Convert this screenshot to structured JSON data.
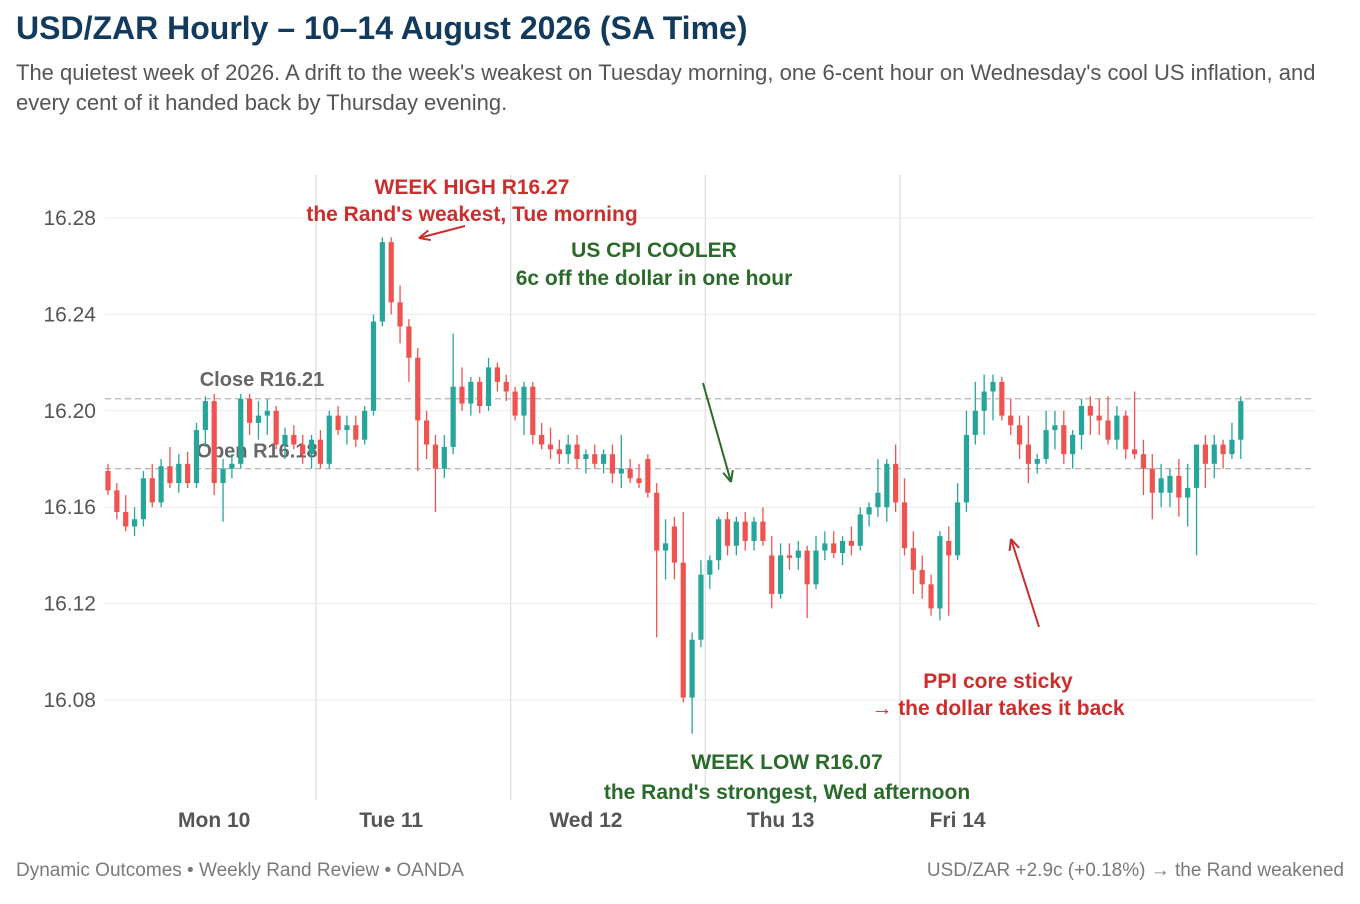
{
  "title": "USD/ZAR Hourly – 10–14 August 2026 (SA Time)",
  "subtitle": "The quietest week of 2026. A drift to the week's weakest on Tuesday morning, one 6-cent hour on Wednesday's cool US inflation, and every cent of it handed back by Thursday evening.",
  "footer": {
    "source": "Dynamic Outcomes • Weekly Rand Review • OANDA",
    "summary": "USD/ZAR +2.9c (+0.18%) → the Rand weakened"
  },
  "colors": {
    "up": "#26a69a",
    "down": "#ef5350",
    "annotation_red": "#cc2e2e",
    "annotation_green": "#2a6a2a",
    "title": "#123a5c"
  },
  "chart_data": {
    "type": "candlestick",
    "title": "USD/ZAR Hourly – 10–14 August 2026 (SA Time)",
    "ylim": [
      16.05,
      16.3
    ],
    "yticks": [
      "16.28",
      "16.24",
      "16.20",
      "16.16",
      "16.12",
      "16.08"
    ],
    "ytick_values": [
      16.28,
      16.24,
      16.2,
      16.16,
      16.12,
      16.08
    ],
    "grid": true,
    "days": [
      {
        "label": "Mon 10",
        "center_hour": 12
      },
      {
        "label": "Tue 11",
        "center_hour": 32
      },
      {
        "label": "Wed 12",
        "center_hour": 54
      },
      {
        "label": "Thu 13",
        "center_hour": 76
      },
      {
        "label": "Fri 14",
        "center_hour": 96
      }
    ],
    "day_boundaries": [
      24,
      46,
      68,
      90
    ],
    "reference_lines": [
      {
        "label": "Close R16.21",
        "value": 16.205
      },
      {
        "label": "Open R16.18",
        "value": 16.176
      }
    ],
    "candles": [
      {
        "o": 16.175,
        "h": 16.178,
        "l": 16.165,
        "c": 16.167
      },
      {
        "o": 16.167,
        "h": 16.17,
        "l": 16.155,
        "c": 16.158
      },
      {
        "o": 16.158,
        "h": 16.165,
        "l": 16.15,
        "c": 16.152
      },
      {
        "o": 16.152,
        "h": 16.16,
        "l": 16.148,
        "c": 16.155
      },
      {
        "o": 16.155,
        "h": 16.175,
        "l": 16.152,
        "c": 16.172
      },
      {
        "o": 16.172,
        "h": 16.178,
        "l": 16.16,
        "c": 16.162
      },
      {
        "o": 16.162,
        "h": 16.18,
        "l": 16.16,
        "c": 16.177
      },
      {
        "o": 16.177,
        "h": 16.185,
        "l": 16.168,
        "c": 16.17
      },
      {
        "o": 16.17,
        "h": 16.182,
        "l": 16.166,
        "c": 16.178
      },
      {
        "o": 16.178,
        "h": 16.183,
        "l": 16.168,
        "c": 16.17
      },
      {
        "o": 16.17,
        "h": 16.195,
        "l": 16.168,
        "c": 16.192
      },
      {
        "o": 16.192,
        "h": 16.206,
        "l": 16.185,
        "c": 16.204
      },
      {
        "o": 16.204,
        "h": 16.207,
        "l": 16.165,
        "c": 16.17
      },
      {
        "o": 16.17,
        "h": 16.18,
        "l": 16.154,
        "c": 16.176
      },
      {
        "o": 16.176,
        "h": 16.182,
        "l": 16.172,
        "c": 16.178
      },
      {
        "o": 16.178,
        "h": 16.207,
        "l": 16.176,
        "c": 16.205
      },
      {
        "o": 16.205,
        "h": 16.207,
        "l": 16.19,
        "c": 16.195
      },
      {
        "o": 16.195,
        "h": 16.204,
        "l": 16.188,
        "c": 16.198
      },
      {
        "o": 16.198,
        "h": 16.205,
        "l": 16.19,
        "c": 16.2
      },
      {
        "o": 16.2,
        "h": 16.202,
        "l": 16.184,
        "c": 16.186
      },
      {
        "o": 16.186,
        "h": 16.193,
        "l": 16.18,
        "c": 16.19
      },
      {
        "o": 16.19,
        "h": 16.194,
        "l": 16.184,
        "c": 16.186
      },
      {
        "o": 16.186,
        "h": 16.19,
        "l": 16.178,
        "c": 16.182
      },
      {
        "o": 16.182,
        "h": 16.19,
        "l": 16.176,
        "c": 16.188
      },
      {
        "o": 16.188,
        "h": 16.192,
        "l": 16.176,
        "c": 16.178
      },
      {
        "o": 16.178,
        "h": 16.2,
        "l": 16.176,
        "c": 16.198
      },
      {
        "o": 16.198,
        "h": 16.202,
        "l": 16.19,
        "c": 16.192
      },
      {
        "o": 16.192,
        "h": 16.198,
        "l": 16.186,
        "c": 16.194
      },
      {
        "o": 16.194,
        "h": 16.198,
        "l": 16.185,
        "c": 16.188
      },
      {
        "o": 16.188,
        "h": 16.202,
        "l": 16.186,
        "c": 16.2
      },
      {
        "o": 16.2,
        "h": 16.24,
        "l": 16.198,
        "c": 16.237
      },
      {
        "o": 16.237,
        "h": 16.272,
        "l": 16.235,
        "c": 16.27
      },
      {
        "o": 16.27,
        "h": 16.272,
        "l": 16.24,
        "c": 16.245
      },
      {
        "o": 16.245,
        "h": 16.252,
        "l": 16.228,
        "c": 16.235
      },
      {
        "o": 16.235,
        "h": 16.238,
        "l": 16.212,
        "c": 16.222
      },
      {
        "o": 16.222,
        "h": 16.226,
        "l": 16.175,
        "c": 16.196
      },
      {
        "o": 16.196,
        "h": 16.2,
        "l": 16.18,
        "c": 16.186
      },
      {
        "o": 16.186,
        "h": 16.19,
        "l": 16.158,
        "c": 16.176
      },
      {
        "o": 16.176,
        "h": 16.19,
        "l": 16.172,
        "c": 16.185
      },
      {
        "o": 16.185,
        "h": 16.232,
        "l": 16.182,
        "c": 16.21
      },
      {
        "o": 16.21,
        "h": 16.218,
        "l": 16.2,
        "c": 16.203
      },
      {
        "o": 16.203,
        "h": 16.214,
        "l": 16.198,
        "c": 16.212
      },
      {
        "o": 16.212,
        "h": 16.214,
        "l": 16.199,
        "c": 16.202
      },
      {
        "o": 16.202,
        "h": 16.222,
        "l": 16.2,
        "c": 16.218
      },
      {
        "o": 16.218,
        "h": 16.22,
        "l": 16.208,
        "c": 16.212
      },
      {
        "o": 16.212,
        "h": 16.215,
        "l": 16.204,
        "c": 16.208
      },
      {
        "o": 16.208,
        "h": 16.21,
        "l": 16.196,
        "c": 16.198
      },
      {
        "o": 16.198,
        "h": 16.212,
        "l": 16.19,
        "c": 16.21
      },
      {
        "o": 16.21,
        "h": 16.212,
        "l": 16.186,
        "c": 16.19
      },
      {
        "o": 16.19,
        "h": 16.195,
        "l": 16.184,
        "c": 16.186
      },
      {
        "o": 16.186,
        "h": 16.193,
        "l": 16.18,
        "c": 16.184
      },
      {
        "o": 16.184,
        "h": 16.188,
        "l": 16.178,
        "c": 16.182
      },
      {
        "o": 16.182,
        "h": 16.19,
        "l": 16.178,
        "c": 16.186
      },
      {
        "o": 16.186,
        "h": 16.19,
        "l": 16.176,
        "c": 16.18
      },
      {
        "o": 16.18,
        "h": 16.184,
        "l": 16.174,
        "c": 16.182
      },
      {
        "o": 16.182,
        "h": 16.186,
        "l": 16.176,
        "c": 16.178
      },
      {
        "o": 16.178,
        "h": 16.184,
        "l": 16.174,
        "c": 16.182
      },
      {
        "o": 16.182,
        "h": 16.186,
        "l": 16.17,
        "c": 16.174
      },
      {
        "o": 16.174,
        "h": 16.19,
        "l": 16.168,
        "c": 16.176
      },
      {
        "o": 16.176,
        "h": 16.18,
        "l": 16.17,
        "c": 16.172
      },
      {
        "o": 16.172,
        "h": 16.178,
        "l": 16.168,
        "c": 16.17
      },
      {
        "o": 16.18,
        "h": 16.182,
        "l": 16.164,
        "c": 16.166
      },
      {
        "o": 16.166,
        "h": 16.17,
        "l": 16.106,
        "c": 16.142
      },
      {
        "o": 16.142,
        "h": 16.155,
        "l": 16.13,
        "c": 16.145
      },
      {
        "o": 16.152,
        "h": 16.156,
        "l": 16.13,
        "c": 16.137
      },
      {
        "o": 16.137,
        "h": 16.158,
        "l": 16.079,
        "c": 16.081
      },
      {
        "o": 16.081,
        "h": 16.108,
        "l": 16.066,
        "c": 16.105
      },
      {
        "o": 16.105,
        "h": 16.138,
        "l": 16.102,
        "c": 16.132
      },
      {
        "o": 16.132,
        "h": 16.14,
        "l": 16.126,
        "c": 16.138
      },
      {
        "o": 16.138,
        "h": 16.156,
        "l": 16.134,
        "c": 16.155
      },
      {
        "o": 16.155,
        "h": 16.158,
        "l": 16.14,
        "c": 16.144
      },
      {
        "o": 16.144,
        "h": 16.156,
        "l": 16.14,
        "c": 16.154
      },
      {
        "o": 16.154,
        "h": 16.158,
        "l": 16.142,
        "c": 16.146
      },
      {
        "o": 16.146,
        "h": 16.156,
        "l": 16.142,
        "c": 16.154
      },
      {
        "o": 16.154,
        "h": 16.16,
        "l": 16.144,
        "c": 16.146
      },
      {
        "o": 16.14,
        "h": 16.148,
        "l": 16.118,
        "c": 16.124
      },
      {
        "o": 16.124,
        "h": 16.145,
        "l": 16.122,
        "c": 16.14
      },
      {
        "o": 16.14,
        "h": 16.145,
        "l": 16.134,
        "c": 16.139
      },
      {
        "o": 16.139,
        "h": 16.146,
        "l": 16.134,
        "c": 16.142
      },
      {
        "o": 16.142,
        "h": 16.144,
        "l": 16.114,
        "c": 16.128
      },
      {
        "o": 16.128,
        "h": 16.148,
        "l": 16.126,
        "c": 16.142
      },
      {
        "o": 16.142,
        "h": 16.15,
        "l": 16.138,
        "c": 16.145
      },
      {
        "o": 16.145,
        "h": 16.15,
        "l": 16.139,
        "c": 16.141
      },
      {
        "o": 16.141,
        "h": 16.148,
        "l": 16.136,
        "c": 16.146
      },
      {
        "o": 16.146,
        "h": 16.152,
        "l": 16.14,
        "c": 16.144
      },
      {
        "o": 16.144,
        "h": 16.16,
        "l": 16.142,
        "c": 16.157
      },
      {
        "o": 16.157,
        "h": 16.162,
        "l": 16.152,
        "c": 16.16
      },
      {
        "o": 16.16,
        "h": 16.18,
        "l": 16.156,
        "c": 16.166
      },
      {
        "o": 16.16,
        "h": 16.18,
        "l": 16.154,
        "c": 16.178
      },
      {
        "o": 16.178,
        "h": 16.186,
        "l": 16.158,
        "c": 16.162
      },
      {
        "o": 16.162,
        "h": 16.172,
        "l": 16.14,
        "c": 16.143
      },
      {
        "o": 16.143,
        "h": 16.15,
        "l": 16.124,
        "c": 16.134
      },
      {
        "o": 16.134,
        "h": 16.14,
        "l": 16.122,
        "c": 16.128
      },
      {
        "o": 16.128,
        "h": 16.132,
        "l": 16.115,
        "c": 16.118
      },
      {
        "o": 16.118,
        "h": 16.15,
        "l": 16.113,
        "c": 16.148
      },
      {
        "o": 16.146,
        "h": 16.152,
        "l": 16.115,
        "c": 16.14
      },
      {
        "o": 16.14,
        "h": 16.17,
        "l": 16.138,
        "c": 16.162
      },
      {
        "o": 16.162,
        "h": 16.2,
        "l": 16.158,
        "c": 16.19
      },
      {
        "o": 16.19,
        "h": 16.212,
        "l": 16.186,
        "c": 16.2
      },
      {
        "o": 16.2,
        "h": 16.215,
        "l": 16.19,
        "c": 16.208
      },
      {
        "o": 16.208,
        "h": 16.215,
        "l": 16.196,
        "c": 16.212
      },
      {
        "o": 16.212,
        "h": 16.214,
        "l": 16.196,
        "c": 16.198
      },
      {
        "o": 16.198,
        "h": 16.205,
        "l": 16.19,
        "c": 16.194
      },
      {
        "o": 16.194,
        "h": 16.198,
        "l": 16.18,
        "c": 16.186
      },
      {
        "o": 16.186,
        "h": 16.198,
        "l": 16.17,
        "c": 16.178
      },
      {
        "o": 16.178,
        "h": 16.182,
        "l": 16.174,
        "c": 16.18
      },
      {
        "o": 16.18,
        "h": 16.2,
        "l": 16.178,
        "c": 16.192
      },
      {
        "o": 16.192,
        "h": 16.2,
        "l": 16.184,
        "c": 16.194
      },
      {
        "o": 16.194,
        "h": 16.2,
        "l": 16.178,
        "c": 16.182
      },
      {
        "o": 16.182,
        "h": 16.192,
        "l": 16.176,
        "c": 16.19
      },
      {
        "o": 16.19,
        "h": 16.205,
        "l": 16.184,
        "c": 16.202
      },
      {
        "o": 16.202,
        "h": 16.206,
        "l": 16.19,
        "c": 16.198
      },
      {
        "o": 16.198,
        "h": 16.205,
        "l": 16.19,
        "c": 16.196
      },
      {
        "o": 16.196,
        "h": 16.206,
        "l": 16.186,
        "c": 16.188
      },
      {
        "o": 16.188,
        "h": 16.202,
        "l": 16.184,
        "c": 16.198
      },
      {
        "o": 16.198,
        "h": 16.2,
        "l": 16.18,
        "c": 16.184
      },
      {
        "o": 16.184,
        "h": 16.208,
        "l": 16.18,
        "c": 16.182
      },
      {
        "o": 16.182,
        "h": 16.188,
        "l": 16.165,
        "c": 16.176
      },
      {
        "o": 16.176,
        "h": 16.182,
        "l": 16.155,
        "c": 16.166
      },
      {
        "o": 16.166,
        "h": 16.178,
        "l": 16.16,
        "c": 16.172
      },
      {
        "o": 16.166,
        "h": 16.176,
        "l": 16.16,
        "c": 16.173
      },
      {
        "o": 16.173,
        "h": 16.18,
        "l": 16.156,
        "c": 16.164
      },
      {
        "o": 16.164,
        "h": 16.178,
        "l": 16.152,
        "c": 16.168
      },
      {
        "o": 16.168,
        "h": 16.185,
        "l": 16.14,
        "c": 16.186
      },
      {
        "o": 16.186,
        "h": 16.19,
        "l": 16.168,
        "c": 16.178
      },
      {
        "o": 16.178,
        "h": 16.19,
        "l": 16.172,
        "c": 16.186
      },
      {
        "o": 16.186,
        "h": 16.188,
        "l": 16.176,
        "c": 16.182
      },
      {
        "o": 16.182,
        "h": 16.195,
        "l": 16.18,
        "c": 16.188
      },
      {
        "o": 16.188,
        "h": 16.206,
        "l": 16.18,
        "c": 16.204
      }
    ],
    "annotations": [
      {
        "key": "high",
        "lines": [
          "WEEK HIGH R16.27",
          "the Rand's weakest, Tue morning"
        ],
        "color": "red"
      },
      {
        "key": "cpi",
        "lines": [
          "US CPI COOLER",
          "6c off the dollar in one hour"
        ],
        "color": "green"
      },
      {
        "key": "low",
        "lines": [
          "WEEK LOW R16.07",
          "the Rand's strongest, Wed afternoon"
        ],
        "color": "green"
      },
      {
        "key": "ppi",
        "lines": [
          "PPI core sticky",
          "→ the dollar takes it back"
        ],
        "color": "red"
      }
    ]
  }
}
